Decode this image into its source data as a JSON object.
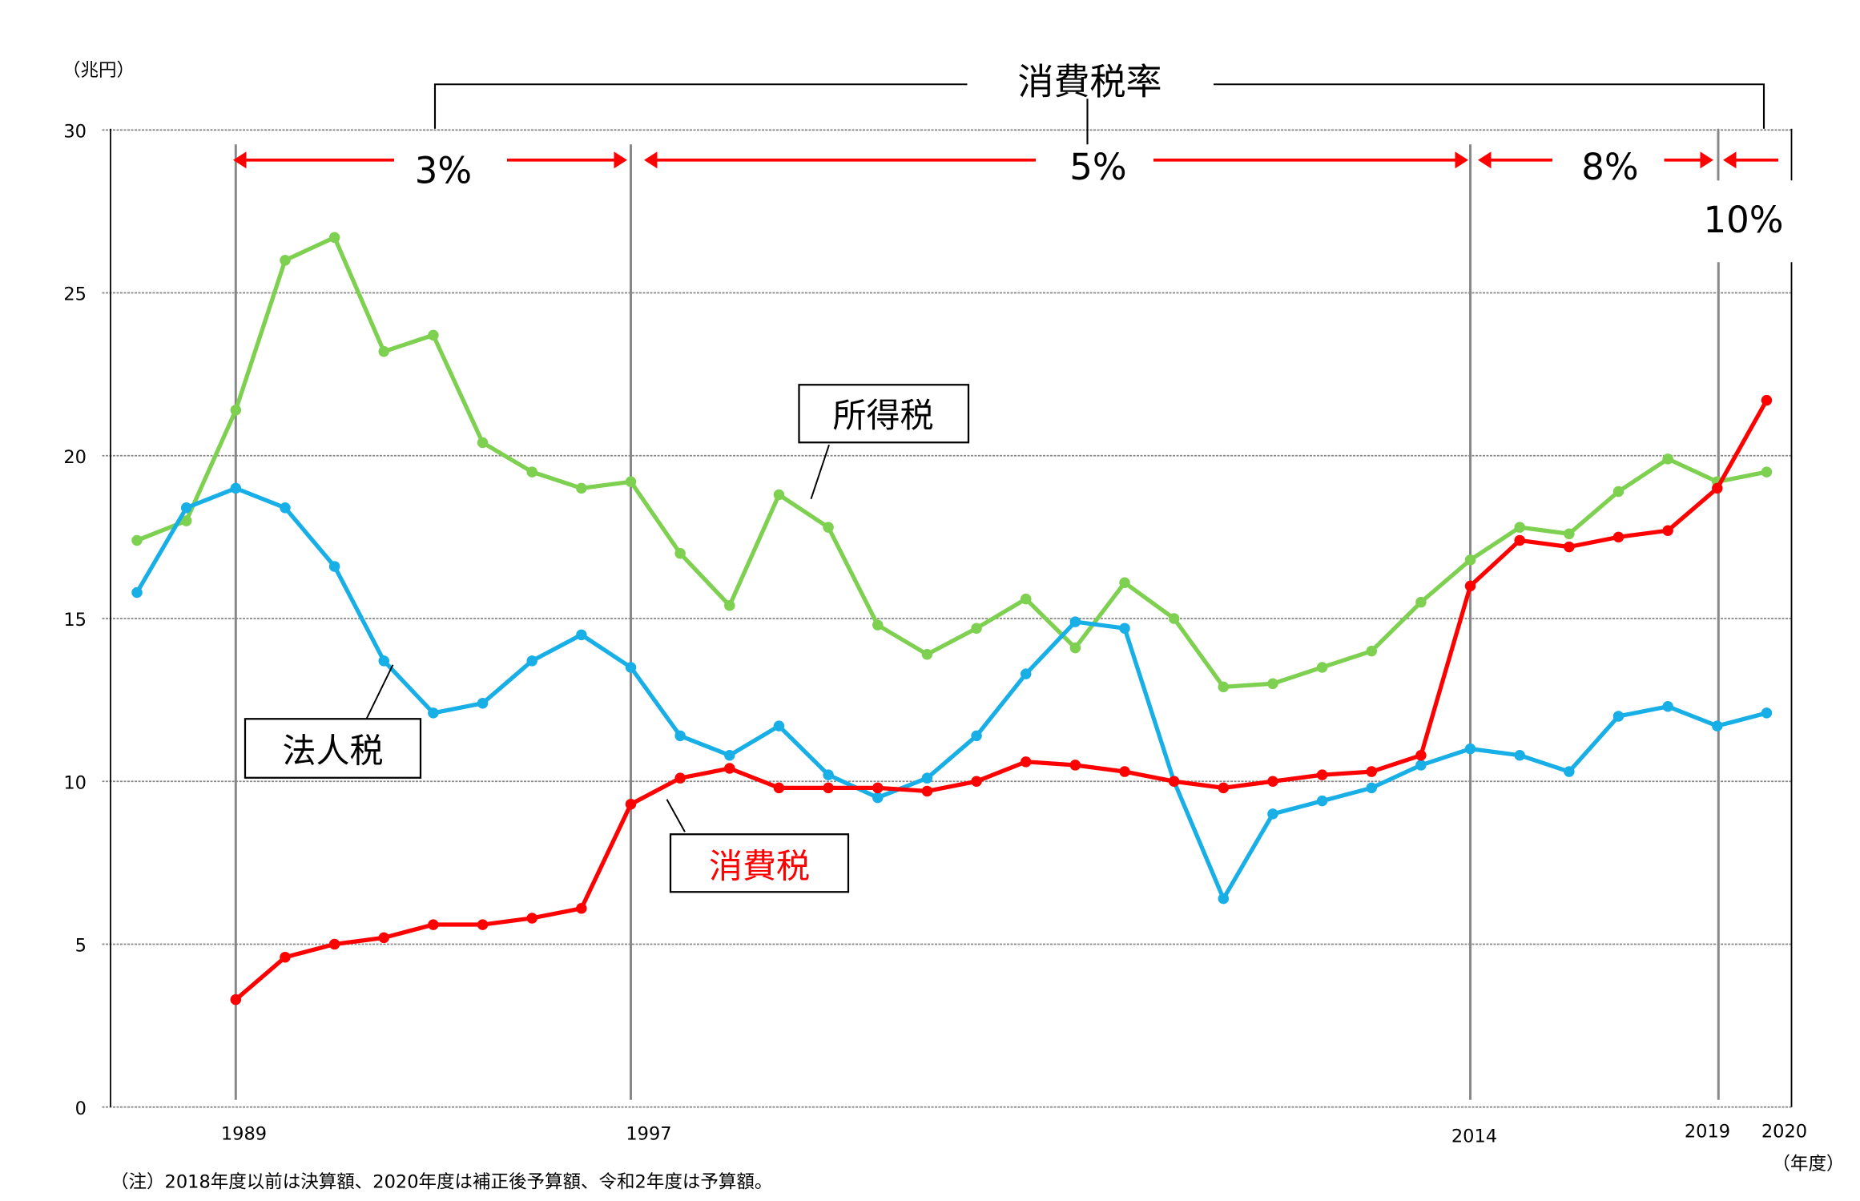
{
  "chart_data": {
    "type": "line",
    "unit_label": "（兆円）",
    "x_unit_label": "（年度）",
    "x": [
      1987,
      1988,
      1989,
      1990,
      1991,
      1992,
      1993,
      1994,
      1995,
      1996,
      1997,
      1998,
      1999,
      2000,
      2001,
      2002,
      2003,
      2004,
      2005,
      2006,
      2007,
      2008,
      2009,
      2010,
      2011,
      2012,
      2013,
      2014,
      2015,
      2016,
      2017,
      2018,
      2019,
      2020
    ],
    "x_tick_labels": [
      "1989",
      "1997",
      "2014",
      "2019",
      "2020"
    ],
    "y_ticks": [
      "0",
      "5",
      "10",
      "15",
      "20",
      "25",
      "30"
    ],
    "ylim": [
      0,
      30
    ],
    "grid": "horizontal dotted",
    "series": [
      {
        "name": "所得税",
        "color": "#7ed050",
        "values": [
          17.4,
          18.0,
          21.4,
          26.0,
          26.7,
          23.2,
          23.7,
          20.4,
          19.5,
          19.0,
          19.2,
          17.0,
          15.4,
          18.8,
          17.8,
          14.8,
          13.9,
          14.7,
          15.6,
          14.1,
          16.1,
          15.0,
          12.9,
          13.0,
          13.5,
          14.0,
          15.5,
          16.8,
          17.8,
          17.6,
          18.9,
          19.9,
          19.2,
          19.5
        ]
      },
      {
        "name": "法人税",
        "color": "#18aee6",
        "values": [
          15.8,
          18.4,
          19.0,
          18.4,
          16.6,
          13.7,
          12.1,
          12.4,
          13.7,
          14.5,
          13.5,
          11.4,
          10.8,
          11.7,
          10.2,
          9.5,
          10.1,
          11.4,
          13.3,
          14.9,
          14.7,
          10.0,
          6.4,
          9.0,
          9.4,
          9.8,
          10.5,
          11.0,
          10.8,
          10.3,
          12.0,
          12.3,
          11.7,
          12.1
        ]
      },
      {
        "name": "消費税",
        "color": "#ff0000",
        "values": [
          null,
          null,
          3.3,
          4.6,
          5.0,
          5.2,
          5.6,
          5.6,
          5.8,
          6.1,
          9.3,
          10.1,
          10.4,
          9.8,
          9.8,
          9.8,
          9.7,
          10.0,
          10.6,
          10.5,
          10.3,
          10.0,
          9.8,
          10.0,
          10.2,
          10.3,
          10.8,
          16.0,
          17.4,
          17.2,
          17.5,
          17.7,
          19.0,
          21.7
        ]
      }
    ],
    "rate_header": "消費税率",
    "rate_periods": [
      {
        "label": "3%",
        "from": 1989,
        "to": 1997
      },
      {
        "label": "5%",
        "from": 1997,
        "to": 2014
      },
      {
        "label": "8%",
        "from": 2014,
        "to": 2019
      },
      {
        "label": "10%",
        "from": 2019,
        "to": 2020
      }
    ],
    "note": "（注）2018年度以前は決算額、2020年度は補正後予算額、令和2年度は予算額。"
  }
}
